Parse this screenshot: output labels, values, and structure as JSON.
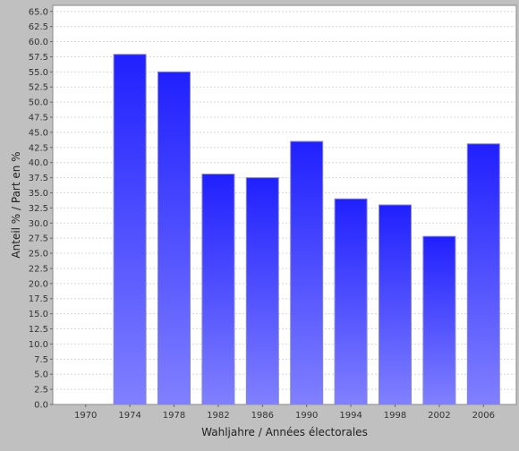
{
  "chart_data": {
    "type": "bar",
    "title": "",
    "xlabel": "Wahljahre / Années électorales",
    "ylabel": "Anteil % / Part en %",
    "categories": [
      "1970",
      "1974",
      "1978",
      "1982",
      "1986",
      "1990",
      "1994",
      "1998",
      "2002",
      "2006"
    ],
    "values": [
      null,
      57.9,
      55.0,
      38.1,
      37.5,
      43.5,
      34.0,
      33.0,
      27.8,
      43.1
    ],
    "ylim": [
      0,
      66
    ],
    "yticks": [
      "0.0",
      "2.5",
      "5.0",
      "7.5",
      "10.0",
      "12.5",
      "15.0",
      "17.5",
      "20.0",
      "22.5",
      "25.0",
      "27.5",
      "30.0",
      "32.5",
      "35.0",
      "37.5",
      "40.0",
      "42.5",
      "45.0",
      "47.5",
      "50.0",
      "52.5",
      "55.0",
      "57.5",
      "60.0",
      "62.5",
      "65.0"
    ],
    "grid": true,
    "legend": "none",
    "colors": {
      "bar_top": "#2020ff",
      "bar_bottom": "#8080ff",
      "bar_edge": "#8888cc",
      "plot_bg": "#ffffff",
      "grid": "#d8d8d8",
      "outer_bg": "#c0c0c0"
    }
  }
}
